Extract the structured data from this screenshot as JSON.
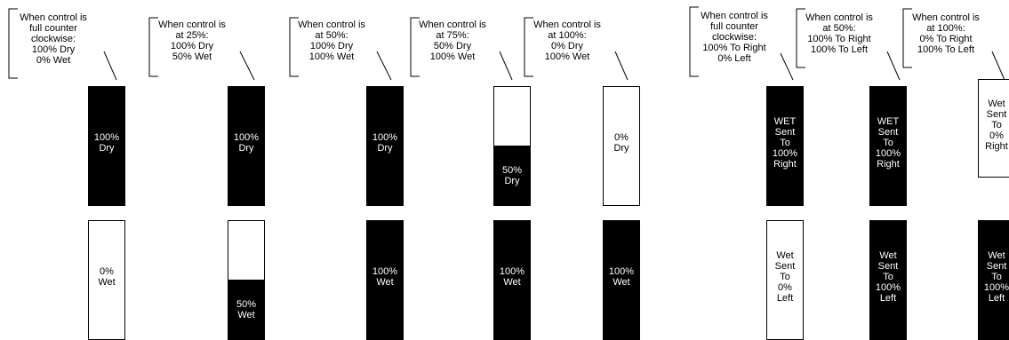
{
  "colors": {
    "ink": "#000000",
    "paper": "#ffffff"
  },
  "callouts": [
    {
      "text": "When control is\nfull counter\nclockwise:\n100% Dry\n0% Wet"
    },
    {
      "text": "When control is\nat 25%:\n100% Dry\n50% Wet"
    },
    {
      "text": "When control is\nat 50%:\n100% Dry\n100% Wet"
    },
    {
      "text": "When control is\nat 75%:\n50% Dry\n100% Wet"
    },
    {
      "text": "When control is\nat 100%:\n0% Dry\n100% Wet"
    },
    {
      "text": "When control is\nfull counter\nclockwise:\n100% To Right\n0% Left"
    },
    {
      "text": "When control is\nat 50%:\n100% To Right\n100% To Left"
    },
    {
      "text": "When control is\nat 100%:\n0% To Right\n100% To Left"
    }
  ],
  "bars": [
    {
      "label": "100%\nDry",
      "level": 1.0
    },
    {
      "label": "0%\nWet",
      "level": 0.0
    },
    {
      "label": "100%\nDry",
      "level": 1.0
    },
    {
      "label": "50%\nWet",
      "level": 0.5
    },
    {
      "label": "100%\nDry",
      "level": 1.0
    },
    {
      "label": "100%\nWet",
      "level": 1.0
    },
    {
      "label": "50%\nDry",
      "level": 0.5
    },
    {
      "label": "100%\nWet",
      "level": 1.0
    },
    {
      "label": "0%\nDry",
      "level": 0.0
    },
    {
      "label": "100%\nWet",
      "level": 1.0
    },
    {
      "label": "WET\nSent\nTo\n100%\nRight",
      "level": 1.0
    },
    {
      "label": "Wet\nSent\nTo\n0%\nLeft",
      "level": 0.0
    },
    {
      "label": "WET\nSent\nTo\n100%\nRight",
      "level": 1.0
    },
    {
      "label": "Wet\nSent\nTo\n100%\nLeft",
      "level": 1.0
    },
    {
      "label": "Wet\nSent\nTo\n0%\nRight",
      "level": 0.0
    },
    {
      "label": "Wet\nSent\nTo\n100%\nLeft",
      "level": 1.0
    }
  ]
}
